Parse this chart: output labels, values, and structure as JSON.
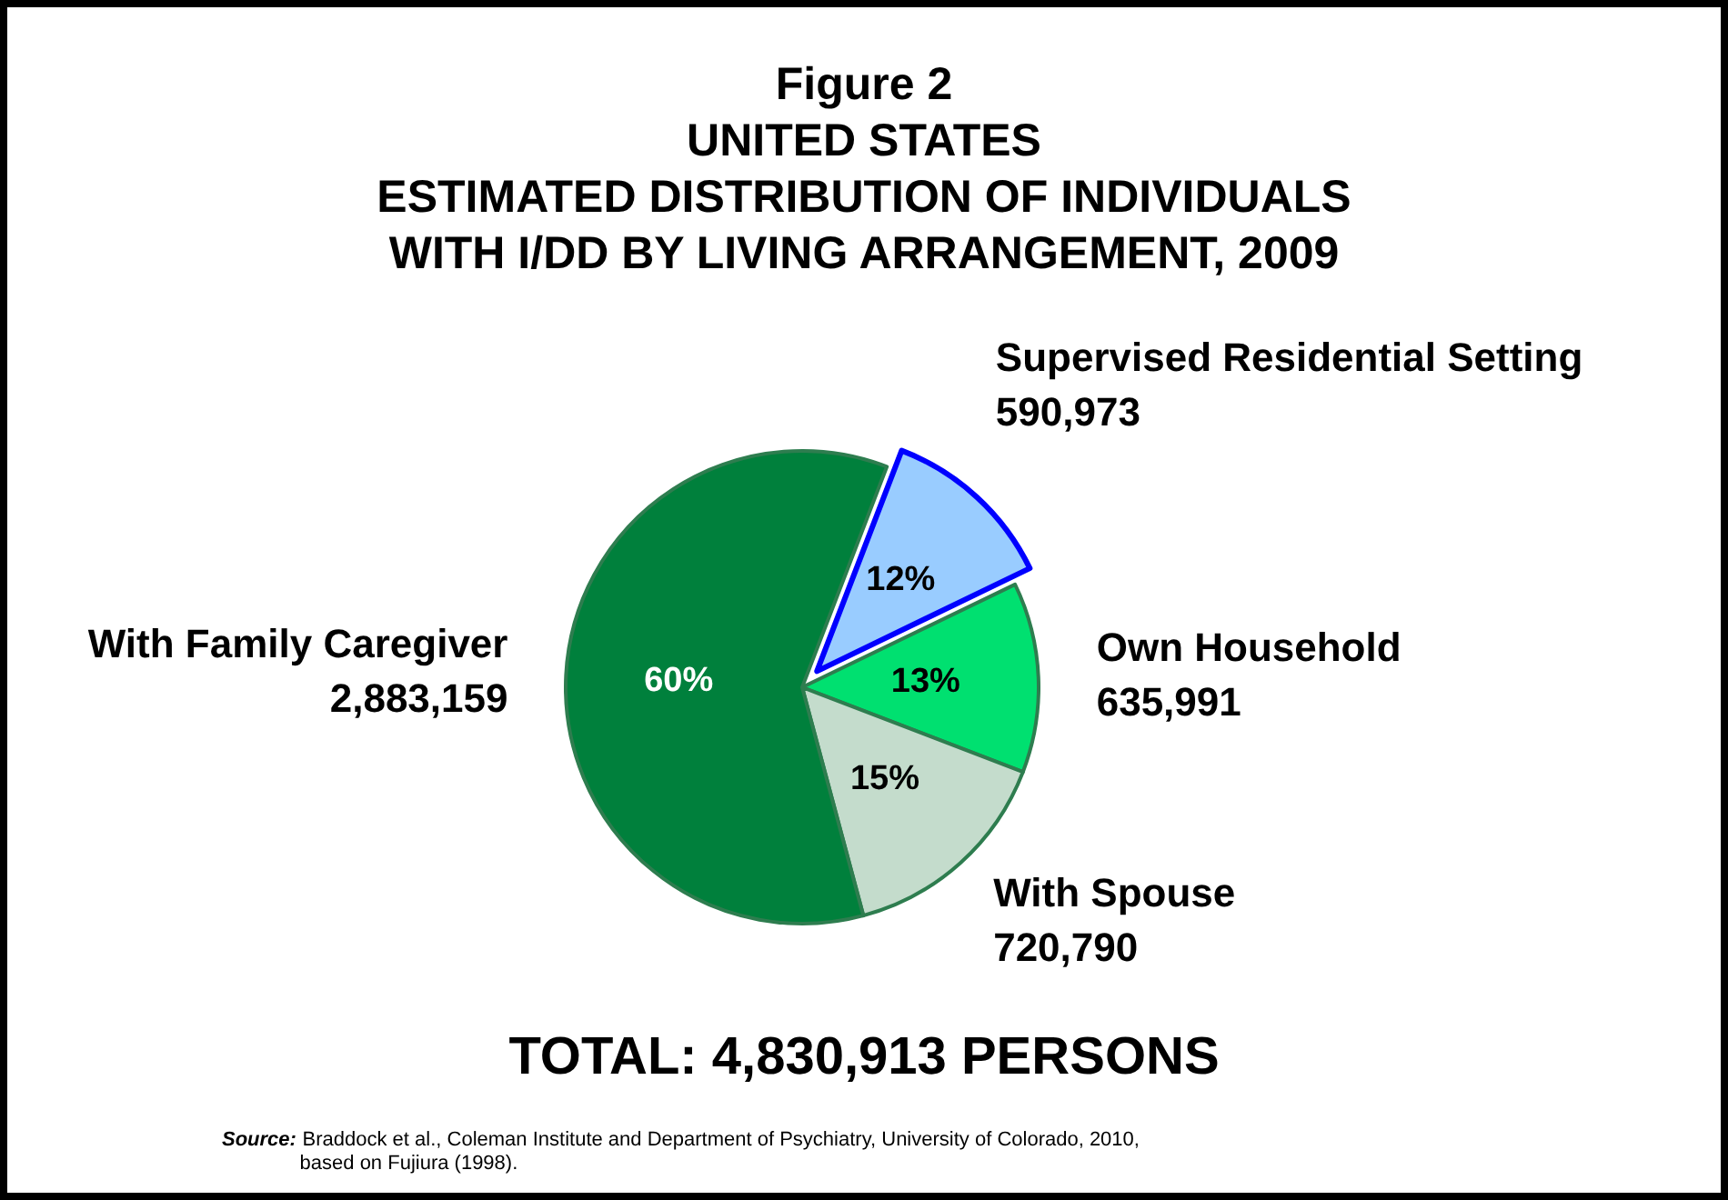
{
  "chart_data": {
    "type": "pie",
    "title": "Figure 2\nUNITED STATES\nESTIMATED DISTRIBUTION OF INDIVIDUALS\nWITH I/DD BY LIVING ARRANGEMENT, 2009",
    "categories": [
      "Supervised Residential Setting",
      "Own Household",
      "With Spouse",
      "With Family Caregiver"
    ],
    "values": [
      12,
      13,
      15,
      60
    ],
    "value_labels": [
      "12%",
      "13%",
      "15%",
      "60%"
    ],
    "colors": [
      "#99ccff",
      "#00e070",
      "#c4dccc",
      "#00803c"
    ],
    "annotations": [
      {
        "text": "590,973",
        "x": "Supervised Residential Setting"
      },
      {
        "text": "635,991",
        "x": "Own Household"
      },
      {
        "text": "720,790",
        "x": "With Spouse"
      },
      {
        "text": "2,883,159",
        "x": "With Family Caregiver"
      },
      "TOTAL: 4,830,913 PERSONS",
      "Source: Braddock et al., Coleman Institute and Department of Psychiatry, University of Colorado, 2010,\nbased on Fujiura (1998)."
    ]
  }
}
